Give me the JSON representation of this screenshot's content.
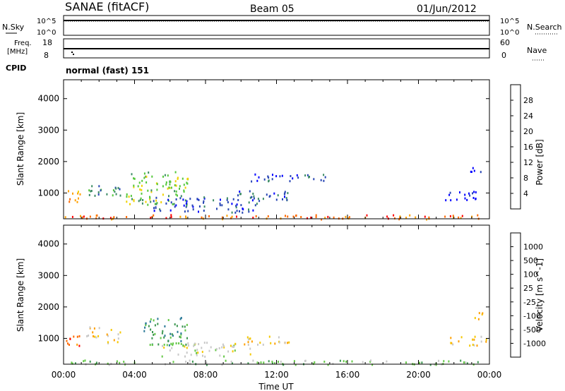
{
  "header": {
    "title": "SANAE (fitACF)",
    "beam": "Beam 05",
    "date": "01/Jun/2012"
  },
  "strip_top": {
    "left_label": "N.Sky",
    "left_ticks": [
      "10^5",
      "10^0"
    ],
    "right_label": "N.Search",
    "right_ticks": [
      "10^5",
      "10^0"
    ]
  },
  "strip_freq": {
    "left_label_1": "Freq.",
    "left_label_2": "[MHz]",
    "left_ticks": [
      "18",
      "8"
    ],
    "right_label": "Nave",
    "right_ticks": [
      "60",
      "0"
    ]
  },
  "cpid": {
    "label": "CPID",
    "value": "normal (fast) 151"
  },
  "chart_data": [
    {
      "type": "heatmap",
      "title": "",
      "xlabel": "Time UT",
      "ylabel": "Slant Range [km]",
      "x_ticks": [
        "00:00",
        "04:00",
        "08:00",
        "12:00",
        "16:00",
        "20:00",
        "00:00"
      ],
      "x_range_hours": [
        0,
        24
      ],
      "y_ticks": [
        1000,
        2000,
        3000,
        4000
      ],
      "ylim": [
        180,
        4600
      ],
      "colorbar": {
        "label": "Power [dB]",
        "ticks": [
          "4",
          "8",
          "12",
          "16",
          "20",
          "24",
          "28"
        ],
        "colors": [
          "#0000ff",
          "#2846b4",
          "#3c8c64",
          "#55c83c",
          "#f0d200",
          "#ffa000",
          "#ff6a00",
          "#ff0000"
        ]
      },
      "clusters": [
        {
          "x_start": 0.1,
          "x_end": 0.9,
          "y_low": 650,
          "y_high": 1150,
          "level": 5
        },
        {
          "x_start": 1.2,
          "x_end": 2.1,
          "y_low": 900,
          "y_high": 1400,
          "level": 2
        },
        {
          "x_start": 2.4,
          "x_end": 3.2,
          "y_low": 850,
          "y_high": 1350,
          "level": 2
        },
        {
          "x_start": 3.5,
          "x_end": 7.0,
          "y_low": 650,
          "y_high": 1700,
          "level": 3
        },
        {
          "x_start": 5.0,
          "x_end": 11.0,
          "y_low": 400,
          "y_high": 900,
          "level": 1
        },
        {
          "x_start": 9.5,
          "x_end": 12.8,
          "y_low": 800,
          "y_high": 1100,
          "level": 1
        },
        {
          "x_start": 10.5,
          "x_end": 15.0,
          "y_low": 1400,
          "y_high": 1650,
          "level": 1
        },
        {
          "x_start": 21.5,
          "x_end": 23.8,
          "y_low": 800,
          "y_high": 1100,
          "level": 0
        },
        {
          "x_start": 22.8,
          "x_end": 23.6,
          "y_low": 1600,
          "y_high": 1850,
          "level": 0
        },
        {
          "x_start": 0.0,
          "x_end": 24.0,
          "y_low": 190,
          "y_high": 330,
          "level": 6
        }
      ]
    },
    {
      "type": "heatmap",
      "title": "",
      "xlabel": "Time UT",
      "ylabel": "Slant Range [km]",
      "x_ticks": [
        "00:00",
        "04:00",
        "08:00",
        "12:00",
        "16:00",
        "20:00",
        "00:00"
      ],
      "x_range_hours": [
        0,
        24
      ],
      "y_ticks": [
        1000,
        2000,
        3000,
        4000
      ],
      "ylim": [
        180,
        4600
      ],
      "colorbar": {
        "label": "Velocity [m s^-1]",
        "ticks": [
          "1000",
          "500",
          "100",
          "25",
          "-25",
          "-100",
          "-500",
          "-1000"
        ],
        "colors": [
          "#1e32c8",
          "#287896",
          "#3c9650",
          "#64c846",
          "#c8c8c8",
          "#f5c800",
          "#ffa000",
          "#ff6a00",
          "#ff0000"
        ]
      },
      "clusters": [
        {
          "x_start": 0.1,
          "x_end": 0.9,
          "y_low": 650,
          "y_high": 1150,
          "level": 7
        },
        {
          "x_start": 1.2,
          "x_end": 2.1,
          "y_low": 900,
          "y_high": 1400,
          "level": 5
        },
        {
          "x_start": 2.4,
          "x_end": 3.2,
          "y_low": 850,
          "y_high": 1350,
          "level": 5
        },
        {
          "x_start": 4.5,
          "x_end": 7.0,
          "y_low": 800,
          "y_high": 1700,
          "level": 2
        },
        {
          "x_start": 5.5,
          "x_end": 10.5,
          "y_low": 450,
          "y_high": 900,
          "level": 4
        },
        {
          "x_start": 10.0,
          "x_end": 12.8,
          "y_low": 800,
          "y_high": 1100,
          "level": 5
        },
        {
          "x_start": 21.5,
          "x_end": 23.8,
          "y_low": 800,
          "y_high": 1100,
          "level": 5
        },
        {
          "x_start": 22.8,
          "x_end": 23.6,
          "y_low": 1600,
          "y_high": 1850,
          "level": 6
        },
        {
          "x_start": 0.0,
          "x_end": 24.0,
          "y_low": 190,
          "y_high": 330,
          "level": 3
        }
      ]
    }
  ]
}
